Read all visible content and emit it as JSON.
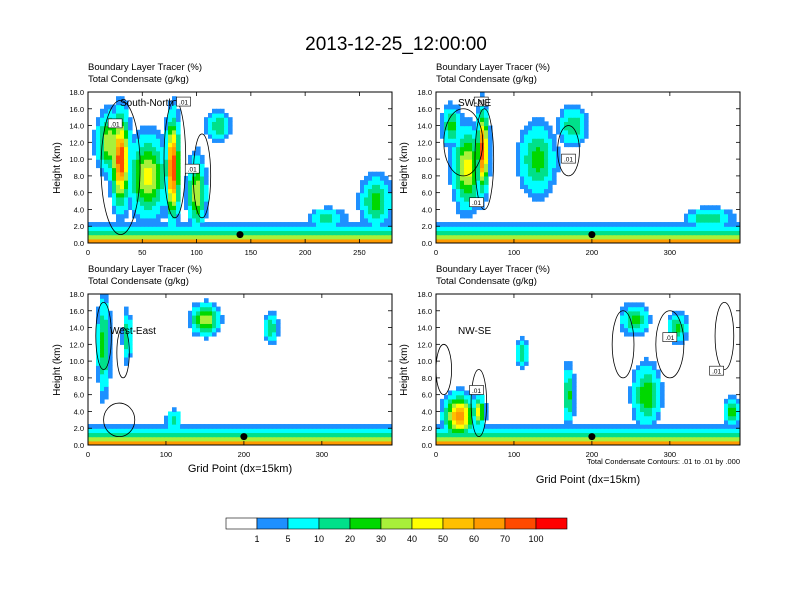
{
  "title": "2013-12-25_12:00:00",
  "colors": {
    "bins": [
      "#ffffff",
      "#1e90ff",
      "#00ffff",
      "#00e08a",
      "#00d800",
      "#a8f03a",
      "#ffff00",
      "#ffc000",
      "#ff9a00",
      "#ff4a00",
      "#ff0000"
    ],
    "contour": "#000000"
  },
  "chart_data": [
    {
      "type": "heatmap",
      "name": "South-North",
      "panel_label": "South-North",
      "header_line1": "Boundary Layer Tracer    (%)",
      "header_line2": "Total Condensate    (g/kg)",
      "ylabel": "Height (km)",
      "xlabel": "",
      "xlim": [
        0,
        280
      ],
      "ylim": [
        0,
        18
      ],
      "xticks": [
        0,
        50,
        100,
        150,
        200,
        250
      ],
      "yticks": [
        "0.0",
        "2.0",
        "4.0",
        "6.0",
        "8.0",
        "10.0",
        "12.0",
        "14.0",
        "16.0",
        "18.0"
      ],
      "contour_labels": [
        {
          "text": ".01",
          "x": 25,
          "y": 14.2
        },
        {
          "text": ".01",
          "x": 88,
          "y": 16.8
        },
        {
          "text": ".01",
          "x": 96,
          "y": 8.8
        }
      ],
      "marker": {
        "x": 140,
        "y": 1.0
      },
      "features": [
        {
          "x": 30,
          "y": 10,
          "w": 14,
          "h": 9,
          "v": 0.9
        },
        {
          "x": 78,
          "y": 9,
          "w": 10,
          "h": 10,
          "v": 0.95
        },
        {
          "x": 55,
          "y": 8,
          "w": 28,
          "h": 8,
          "v": 0.55
        },
        {
          "x": 20,
          "y": 12,
          "w": 20,
          "h": 6,
          "v": 0.5
        },
        {
          "x": 120,
          "y": 14,
          "w": 20,
          "h": 3,
          "v": 0.3
        },
        {
          "x": 100,
          "y": 6,
          "w": 14,
          "h": 7,
          "v": 0.5
        },
        {
          "x": 265,
          "y": 5,
          "w": 25,
          "h": 5,
          "v": 0.35
        },
        {
          "x": 220,
          "y": 3,
          "w": 30,
          "h": 2,
          "v": 0.25
        }
      ],
      "contours": [
        {
          "x": 30,
          "y": 9,
          "rx": 18,
          "ry": 8
        },
        {
          "x": 80,
          "y": 10,
          "rx": 10,
          "ry": 7
        },
        {
          "x": 105,
          "y": 8,
          "rx": 8,
          "ry": 5
        }
      ]
    },
    {
      "type": "heatmap",
      "name": "SW-NE",
      "panel_label": "SW-NE",
      "header_line1": "Boundary Layer Tracer    (%)",
      "header_line2": "Total Condensate    (g/kg)",
      "ylabel": "Height (km)",
      "xlabel": "",
      "xlim": [
        0,
        390
      ],
      "ylim": [
        0,
        18
      ],
      "xticks": [
        0,
        100,
        200,
        300
      ],
      "yticks": [
        "0.0",
        "2.0",
        "4.0",
        "6.0",
        "8.0",
        "10.0",
        "12.0",
        "14.0",
        "16.0",
        "18.0"
      ],
      "contour_labels": [
        {
          "text": ".01",
          "x": 58,
          "y": 16.8
        },
        {
          "text": ".01",
          "x": 170,
          "y": 10.0
        },
        {
          "text": ".01",
          "x": 52,
          "y": 4.8
        }
      ],
      "marker": {
        "x": 200,
        "y": 1.0
      },
      "features": [
        {
          "x": 60,
          "y": 11,
          "w": 12,
          "h": 8,
          "v": 0.9
        },
        {
          "x": 40,
          "y": 9,
          "w": 30,
          "h": 8,
          "v": 0.55
        },
        {
          "x": 130,
          "y": 10,
          "w": 40,
          "h": 7,
          "v": 0.35
        },
        {
          "x": 175,
          "y": 14,
          "w": 30,
          "h": 4,
          "v": 0.3
        },
        {
          "x": 20,
          "y": 14,
          "w": 22,
          "h": 4,
          "v": 0.35
        },
        {
          "x": 350,
          "y": 3,
          "w": 50,
          "h": 2,
          "v": 0.3
        }
      ],
      "contours": [
        {
          "x": 35,
          "y": 12,
          "rx": 25,
          "ry": 4
        },
        {
          "x": 62,
          "y": 10,
          "rx": 12,
          "ry": 6
        },
        {
          "x": 170,
          "y": 11,
          "rx": 14,
          "ry": 3
        }
      ]
    },
    {
      "type": "heatmap",
      "name": "West-East",
      "panel_label": "West-East",
      "header_line1": "Boundary Layer Tracer    (%)",
      "header_line2": "Total Condensate    (g/kg)",
      "ylabel": "Height (km)",
      "xlabel": "Grid Point (dx=15km)",
      "xlim": [
        0,
        390
      ],
      "ylim": [
        0,
        18
      ],
      "xticks": [
        0,
        100,
        200,
        300
      ],
      "yticks": [
        "0.0",
        "2.0",
        "4.0",
        "6.0",
        "8.0",
        "10.0",
        "12.0",
        "14.0",
        "16.0",
        "18.0"
      ],
      "contour_labels": [],
      "marker": {
        "x": 200,
        "y": 1.0
      },
      "features": [
        {
          "x": 150,
          "y": 15,
          "w": 30,
          "h": 3,
          "v": 0.5
        },
        {
          "x": 235,
          "y": 14,
          "w": 15,
          "h": 3,
          "v": 0.3
        },
        {
          "x": 20,
          "y": 12,
          "w": 14,
          "h": 10,
          "v": 0.35
        },
        {
          "x": 50,
          "y": 13,
          "w": 10,
          "h": 5,
          "v": 0.3
        },
        {
          "x": 110,
          "y": 3,
          "w": 16,
          "h": 2,
          "v": 0.3
        }
      ],
      "contours": [
        {
          "x": 20,
          "y": 13,
          "rx": 10,
          "ry": 4
        },
        {
          "x": 45,
          "y": 11,
          "rx": 8,
          "ry": 3
        },
        {
          "x": 40,
          "y": 3,
          "rx": 20,
          "ry": 2
        }
      ]
    },
    {
      "type": "heatmap",
      "name": "NW-SE",
      "panel_label": "NW-SE",
      "header_line1": "Boundary Layer Tracer    (%)",
      "header_line2": "Total Condensate    (g/kg)",
      "ylabel": "Height (km)",
      "xlabel": "Grid Point (dx=15km)",
      "note": "Total Condensate Contours: .01 to .01 by .000",
      "xlim": [
        0,
        390
      ],
      "ylim": [
        0,
        18
      ],
      "xticks": [
        0,
        100,
        200,
        300
      ],
      "yticks": [
        "0.0",
        "2.0",
        "4.0",
        "6.0",
        "8.0",
        "10.0",
        "12.0",
        "14.0",
        "16.0",
        "18.0"
      ],
      "contour_labels": [
        {
          "text": ".01",
          "x": 52,
          "y": 6.5
        },
        {
          "text": ".01",
          "x": 300,
          "y": 12.8
        },
        {
          "text": ".01",
          "x": 360,
          "y": 8.8
        }
      ],
      "marker": {
        "x": 200,
        "y": 1.0
      },
      "features": [
        {
          "x": 30,
          "y": 3.5,
          "w": 32,
          "h": 4,
          "v": 0.8
        },
        {
          "x": 55,
          "y": 4,
          "w": 14,
          "h": 3,
          "v": 0.55
        },
        {
          "x": 255,
          "y": 15,
          "w": 30,
          "h": 3,
          "v": 0.35
        },
        {
          "x": 310,
          "y": 14,
          "w": 20,
          "h": 3,
          "v": 0.35
        },
        {
          "x": 270,
          "y": 6,
          "w": 30,
          "h": 6,
          "v": 0.4
        },
        {
          "x": 170,
          "y": 6,
          "w": 12,
          "h": 6,
          "v": 0.35
        },
        {
          "x": 110,
          "y": 11,
          "w": 12,
          "h": 3,
          "v": 0.3
        },
        {
          "x": 380,
          "y": 4,
          "w": 15,
          "h": 3,
          "v": 0.4
        }
      ],
      "contours": [
        {
          "x": 10,
          "y": 9,
          "rx": 10,
          "ry": 3
        },
        {
          "x": 55,
          "y": 5,
          "rx": 10,
          "ry": 4
        },
        {
          "x": 240,
          "y": 12,
          "rx": 14,
          "ry": 4
        },
        {
          "x": 300,
          "y": 12,
          "rx": 18,
          "ry": 4
        },
        {
          "x": 370,
          "y": 13,
          "rx": 12,
          "ry": 4
        }
      ]
    }
  ],
  "colorbar": {
    "labels": [
      "1",
      "5",
      "10",
      "20",
      "30",
      "40",
      "50",
      "60",
      "70",
      "100"
    ]
  }
}
